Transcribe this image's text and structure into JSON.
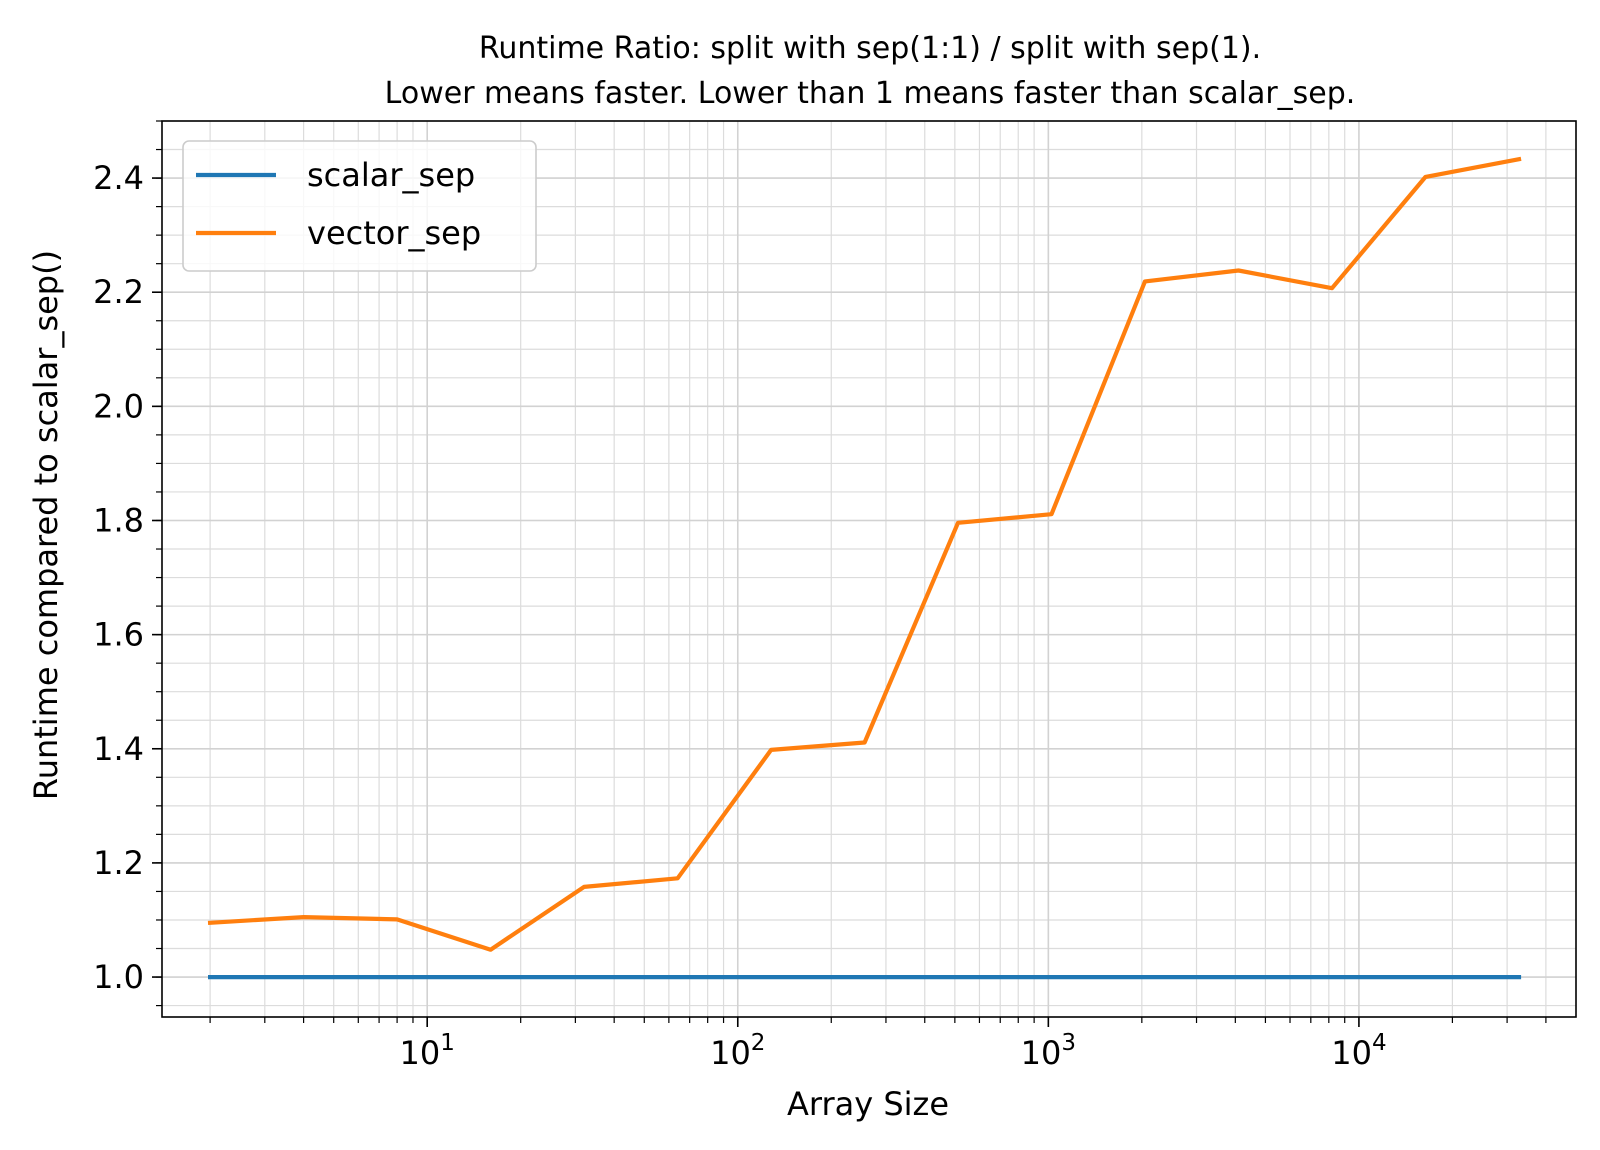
{
  "chart_data": {
    "type": "line",
    "title": [
      "Runtime Ratio: split with sep(1:1) / split with sep(1).",
      "Lower means faster. Lower than 1 means faster than scalar_sep."
    ],
    "xlabel": "Array Size",
    "ylabel": "Runtime compared to scalar_sep()",
    "xscale": "log",
    "xlim": [
      1.4,
      50000
    ],
    "ylim": [
      0.93,
      2.5
    ],
    "grid": true,
    "legend_position": "upper-left",
    "x": [
      2,
      4,
      8,
      16,
      32,
      64,
      128,
      256,
      512,
      1024,
      2048,
      4096,
      8192,
      16384,
      32768
    ],
    "series": [
      {
        "name": "scalar_sep",
        "color": "#1f77b4",
        "values": [
          1.0,
          1.0,
          1.0,
          1.0,
          1.0,
          1.0,
          1.0,
          1.0,
          1.0,
          1.0,
          1.0,
          1.0,
          1.0,
          1.0,
          1.0
        ]
      },
      {
        "name": "vector_sep",
        "color": "#ff7f0e",
        "values": [
          1.095,
          1.105,
          1.101,
          1.048,
          1.158,
          1.173,
          1.398,
          1.411,
          1.796,
          1.811,
          2.219,
          2.238,
          2.207,
          2.402,
          2.433
        ]
      }
    ],
    "x_ticks": [
      {
        "base": "10",
        "exp": "1",
        "value": 10
      },
      {
        "base": "10",
        "exp": "2",
        "value": 100
      },
      {
        "base": "10",
        "exp": "3",
        "value": 1000
      },
      {
        "base": "10",
        "exp": "4",
        "value": 10000
      }
    ],
    "y_ticks": [
      {
        "label": "1.0",
        "value": 1.0
      },
      {
        "label": "1.2",
        "value": 1.2
      },
      {
        "label": "1.4",
        "value": 1.4
      },
      {
        "label": "1.6",
        "value": 1.6
      },
      {
        "label": "1.8",
        "value": 1.8
      },
      {
        "label": "2.0",
        "value": 2.0
      },
      {
        "label": "2.2",
        "value": 2.2
      },
      {
        "label": "2.4",
        "value": 2.4
      }
    ]
  }
}
